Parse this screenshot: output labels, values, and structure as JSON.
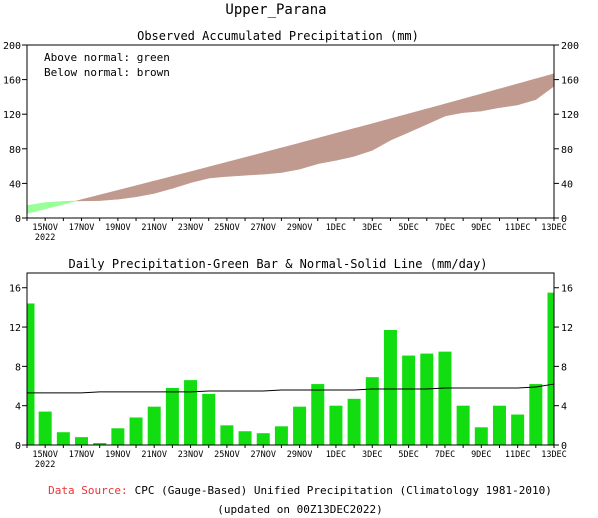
{
  "title": "Upper_Parana",
  "charts": [
    {
      "type": "area",
      "title": "Observed Accumulated Precipitation (mm)",
      "legend_lines": [
        "Above normal: green",
        "Below normal: brown"
      ],
      "colors": {
        "above": "#99ff99",
        "below": "#c09a8e"
      },
      "ylim": [
        0,
        200
      ],
      "yticks": [
        0,
        40,
        80,
        120,
        160,
        200
      ],
      "x_tick_labels": [
        "15NOV",
        "17NOV",
        "19NOV",
        "21NOV",
        "23NOV",
        "25NOV",
        "27NOV",
        "29NOV",
        "1DEC",
        "3DEC",
        "5DEC",
        "7DEC",
        "9DEC",
        "11DEC",
        "13DEC"
      ],
      "x_year_label": "2022"
    },
    {
      "type": "bar",
      "title": "Daily Precipitation-Green Bar & Normal-Solid Line (mm/day)",
      "colors": {
        "bar": "#11dd11",
        "line": "#000000"
      },
      "ylim": [
        0,
        17.5
      ],
      "yticks": [
        0,
        4,
        8,
        12,
        16
      ],
      "x_tick_labels": [
        "15NOV",
        "17NOV",
        "19NOV",
        "21NOV",
        "23NOV",
        "25NOV",
        "27NOV",
        "29NOV",
        "1DEC",
        "3DEC",
        "5DEC",
        "7DEC",
        "9DEC",
        "11DEC",
        "13DEC"
      ],
      "x_year_label": "2022"
    }
  ],
  "chart_data": [
    {
      "type": "area",
      "title": "Observed Accumulated Precipitation (mm)",
      "x_dates": [
        "14NOV",
        "15NOV",
        "16NOV",
        "17NOV",
        "18NOV",
        "19NOV",
        "20NOV",
        "21NOV",
        "22NOV",
        "23NOV",
        "24NOV",
        "25NOV",
        "26NOV",
        "27NOV",
        "28NOV",
        "29NOV",
        "30NOV",
        "1DEC",
        "2DEC",
        "3DEC",
        "4DEC",
        "5DEC",
        "6DEC",
        "7DEC",
        "8DEC",
        "9DEC",
        "10DEC",
        "11DEC",
        "12DEC",
        "13DEC"
      ],
      "series": [
        {
          "name": "Observed",
          "values": [
            14.4,
            17.8,
            19.1,
            19.9,
            20.1,
            21.8,
            24.6,
            28.5,
            34.3,
            40.9,
            46.1,
            48.1,
            49.5,
            50.7,
            52.6,
            56.5,
            62.7,
            66.7,
            71.4,
            78.3,
            90.0,
            99.1,
            108.4,
            117.9,
            121.9,
            123.7,
            127.7,
            130.8,
            137.0,
            152.5
          ]
        },
        {
          "name": "Normal",
          "values": [
            5.3,
            10.6,
            15.9,
            21.2,
            26.6,
            31.9,
            37.3,
            42.7,
            48.1,
            53.5,
            59.0,
            64.4,
            69.9,
            75.4,
            81.0,
            86.6,
            92.2,
            97.8,
            103.4,
            109.0,
            114.7,
            120.4,
            126.1,
            131.8,
            137.6,
            143.4,
            149.2,
            155.0,
            160.9,
            166.8
          ]
        }
      ],
      "ylim": [
        0,
        200
      ]
    },
    {
      "type": "bar",
      "title": "Daily Precipitation-Green Bar & Normal-Solid Line (mm/day)",
      "x_dates": [
        "14NOV",
        "15NOV",
        "16NOV",
        "17NOV",
        "18NOV",
        "19NOV",
        "20NOV",
        "21NOV",
        "22NOV",
        "23NOV",
        "24NOV",
        "25NOV",
        "26NOV",
        "27NOV",
        "28NOV",
        "29NOV",
        "30NOV",
        "1DEC",
        "2DEC",
        "3DEC",
        "4DEC",
        "5DEC",
        "6DEC",
        "7DEC",
        "8DEC",
        "9DEC",
        "10DEC",
        "11DEC",
        "12DEC",
        "13DEC"
      ],
      "series": [
        {
          "name": "Daily Precipitation",
          "values": [
            14.4,
            3.4,
            1.3,
            0.8,
            0.2,
            1.7,
            2.8,
            3.9,
            5.8,
            6.6,
            5.2,
            2.0,
            1.4,
            1.2,
            1.9,
            3.9,
            6.2,
            4.0,
            4.7,
            6.9,
            11.7,
            9.1,
            9.3,
            9.5,
            4.0,
            1.8,
            4.0,
            3.1,
            6.2,
            15.5
          ]
        },
        {
          "name": "Normal",
          "values": [
            5.3,
            5.3,
            5.3,
            5.3,
            5.4,
            5.4,
            5.4,
            5.4,
            5.4,
            5.4,
            5.5,
            5.5,
            5.5,
            5.5,
            5.6,
            5.6,
            5.6,
            5.6,
            5.6,
            5.7,
            5.7,
            5.7,
            5.7,
            5.8,
            5.8,
            5.8,
            5.8,
            5.8,
            5.9,
            6.2
          ]
        }
      ],
      "ylim": [
        0,
        17.5
      ]
    }
  ],
  "footer": {
    "source_label": "Data Source:",
    "source_text": "CPC (Gauge-Based) Unified Precipitation (Climatology 1981-2010)",
    "updated": "(updated on 00Z13DEC2022)"
  }
}
